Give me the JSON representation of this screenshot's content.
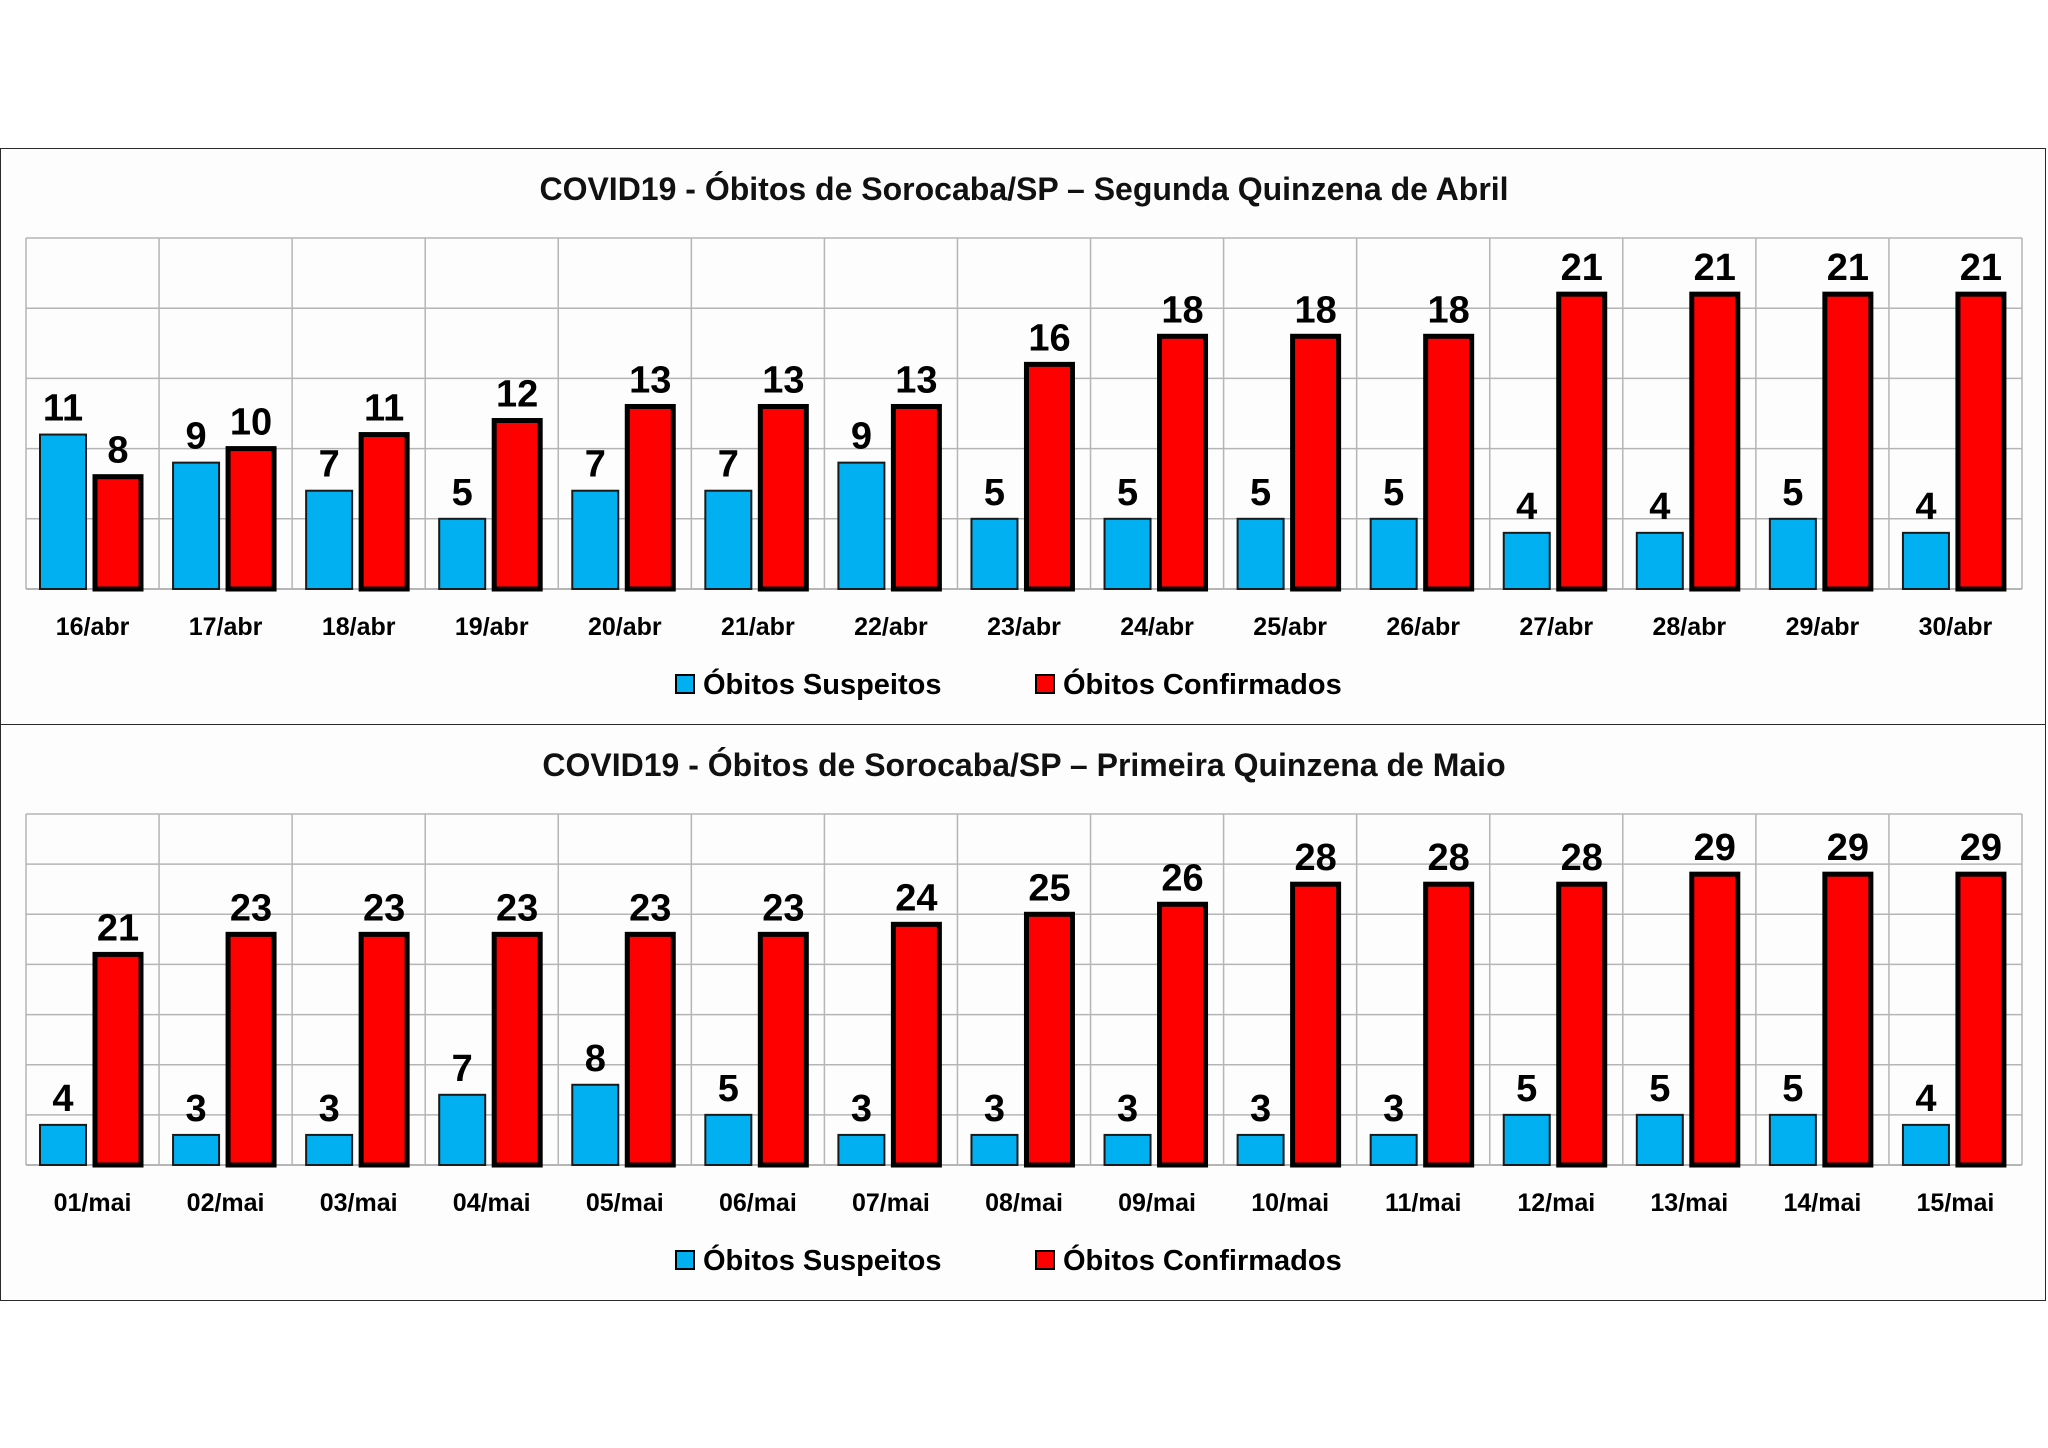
{
  "colors": {
    "suspeitos": "#00b0f0",
    "confirmados": "#ff0000",
    "grid": "#b5b5b5",
    "outline": "#000000"
  },
  "chart_data": [
    {
      "type": "bar",
      "title": "COVID19 - Óbitos  de Sorocaba/SP – Segunda Quinzena de Abril",
      "categories": [
        "16/abr",
        "17/abr",
        "18/abr",
        "19/abr",
        "20/abr",
        "21/abr",
        "22/abr",
        "23/abr",
        "24/abr",
        "25/abr",
        "26/abr",
        "27/abr",
        "28/abr",
        "29/abr",
        "30/abr"
      ],
      "series": [
        {
          "name": "Óbitos Suspeitos",
          "color": "#00b0f0",
          "values": [
            11,
            9,
            7,
            5,
            7,
            7,
            9,
            5,
            5,
            5,
            5,
            4,
            4,
            5,
            4
          ]
        },
        {
          "name": "Óbitos Confirmados",
          "color": "#ff0000",
          "values": [
            8,
            10,
            11,
            12,
            13,
            13,
            13,
            16,
            18,
            18,
            18,
            21,
            21,
            21,
            21
          ]
        }
      ],
      "ylim": [
        0,
        25
      ],
      "ygrid_step": 5,
      "legend": "bottom-center",
      "xlabel": "",
      "ylabel": ""
    },
    {
      "type": "bar",
      "title": "COVID19 - Óbitos  de Sorocaba/SP – Primeira Quinzena de Maio",
      "categories": [
        "01/mai",
        "02/mai",
        "03/mai",
        "04/mai",
        "05/mai",
        "06/mai",
        "07/mai",
        "08/mai",
        "09/mai",
        "10/mai",
        "11/mai",
        "12/mai",
        "13/mai",
        "14/mai",
        "15/mai"
      ],
      "series": [
        {
          "name": "Óbitos Suspeitos",
          "color": "#00b0f0",
          "values": [
            4,
            3,
            3,
            7,
            8,
            5,
            3,
            3,
            3,
            3,
            3,
            5,
            5,
            5,
            4
          ]
        },
        {
          "name": "Óbitos Confirmados",
          "color": "#ff0000",
          "values": [
            21,
            23,
            23,
            23,
            23,
            23,
            24,
            25,
            26,
            28,
            28,
            28,
            29,
            29,
            29
          ]
        }
      ],
      "ylim": [
        0,
        35
      ],
      "ygrid_step": 5,
      "legend": "bottom-center",
      "xlabel": "",
      "ylabel": ""
    }
  ]
}
